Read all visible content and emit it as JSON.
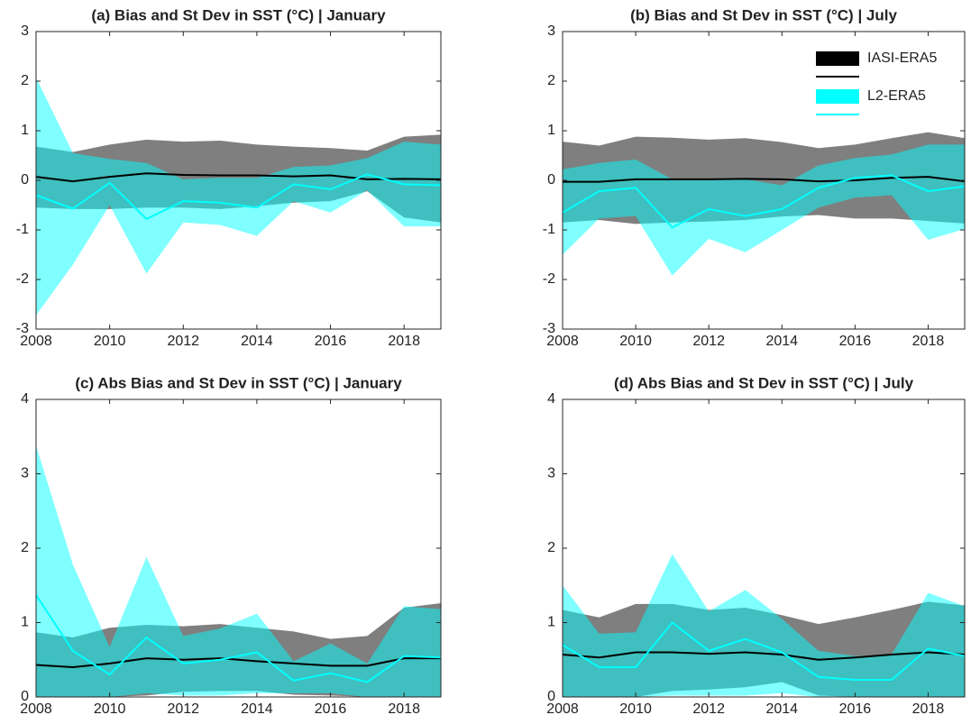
{
  "chart_data": [
    {
      "type": "band-line",
      "title": "(a) Bias and St Dev in SST (°C) | January",
      "x": [
        2008,
        2009,
        2010,
        2011,
        2012,
        2013,
        2014,
        2015,
        2016,
        2017,
        2018,
        2019
      ],
      "xlim": [
        2008,
        2019
      ],
      "xticks": [
        2008,
        2010,
        2012,
        2014,
        2016,
        2018
      ],
      "ylim": [
        -3,
        3
      ],
      "yticks": [
        -3,
        -2,
        -1,
        0,
        1,
        2,
        3
      ],
      "series": [
        {
          "color": "#000000",
          "values": [
            0.07,
            -0.02,
            0.07,
            0.14,
            0.11,
            0.1,
            0.1,
            0.08,
            0.1,
            0.02,
            0.03,
            0.02
          ],
          "upper": [
            0.68,
            0.57,
            0.72,
            0.82,
            0.78,
            0.8,
            0.72,
            0.68,
            0.65,
            0.6,
            0.88,
            0.92
          ],
          "lower": [
            -0.55,
            -0.58,
            -0.58,
            -0.55,
            -0.55,
            -0.58,
            -0.52,
            -0.45,
            -0.42,
            -0.22,
            -0.75,
            -0.85
          ]
        },
        {
          "color": "#00ffff",
          "values": [
            -0.3,
            -0.57,
            -0.05,
            -0.78,
            -0.42,
            -0.45,
            -0.55,
            -0.08,
            -0.18,
            0.12,
            -0.08,
            -0.1
          ],
          "upper": [
            2.07,
            0.55,
            0.43,
            0.35,
            0.02,
            0.05,
            0.05,
            0.27,
            0.3,
            0.45,
            0.78,
            0.72
          ],
          "lower": [
            -2.72,
            -1.7,
            -0.5,
            -1.88,
            -0.85,
            -0.9,
            -1.12,
            -0.42,
            -0.65,
            -0.2,
            -0.93,
            -0.93
          ]
        }
      ]
    },
    {
      "type": "band-line",
      "title": "(b) Bias and St Dev in SST (°C) | July",
      "x": [
        2008,
        2009,
        2010,
        2011,
        2012,
        2013,
        2014,
        2015,
        2016,
        2017,
        2018,
        2019
      ],
      "xlim": [
        2008,
        2019
      ],
      "xticks": [
        2008,
        2010,
        2012,
        2014,
        2016,
        2018
      ],
      "ylim": [
        -3,
        3
      ],
      "yticks": [
        -3,
        -2,
        -1,
        0,
        1,
        2,
        3
      ],
      "legend": "northeast",
      "series": [
        {
          "name": "IASI-ERA5",
          "color": "#000000",
          "values": [
            -0.03,
            -0.03,
            0.02,
            0.02,
            0.02,
            0.03,
            0.02,
            -0.02,
            0.0,
            0.05,
            0.07,
            -0.02
          ],
          "upper": [
            0.78,
            0.7,
            0.88,
            0.86,
            0.82,
            0.85,
            0.77,
            0.65,
            0.72,
            0.85,
            0.97,
            0.85
          ],
          "lower": [
            -0.85,
            -0.8,
            -0.88,
            -0.85,
            -0.83,
            -0.8,
            -0.73,
            -0.7,
            -0.77,
            -0.77,
            -0.82,
            -0.87
          ]
        },
        {
          "name": "L2-ERA5",
          "color": "#00ffff",
          "values": [
            -0.65,
            -0.22,
            -0.15,
            -0.95,
            -0.58,
            -0.72,
            -0.58,
            -0.15,
            0.05,
            0.1,
            -0.22,
            -0.12
          ],
          "upper": [
            0.22,
            0.35,
            0.42,
            0.02,
            0.02,
            0.02,
            -0.1,
            0.3,
            0.45,
            0.52,
            0.72,
            0.72
          ],
          "lower": [
            -1.5,
            -0.77,
            -0.72,
            -1.92,
            -1.18,
            -1.45,
            -1.0,
            -0.55,
            -0.35,
            -0.3,
            -1.2,
            -0.98
          ]
        }
      ]
    },
    {
      "type": "band-line",
      "title": "(c) Abs Bias and St Dev in SST (°C) | January",
      "x": [
        2008,
        2009,
        2010,
        2011,
        2012,
        2013,
        2014,
        2015,
        2016,
        2017,
        2018,
        2019
      ],
      "xlim": [
        2008,
        2019
      ],
      "xticks": [
        2008,
        2010,
        2012,
        2014,
        2016,
        2018
      ],
      "ylim": [
        0,
        4
      ],
      "yticks": [
        0,
        1,
        2,
        3,
        4
      ],
      "series": [
        {
          "color": "#000000",
          "values": [
            0.43,
            0.4,
            0.45,
            0.52,
            0.5,
            0.52,
            0.48,
            0.45,
            0.42,
            0.42,
            0.52,
            0.52
          ],
          "upper": [
            0.87,
            0.8,
            0.93,
            0.97,
            0.95,
            0.98,
            0.93,
            0.88,
            0.78,
            0.82,
            1.2,
            1.26
          ],
          "lower": [
            0,
            0,
            0,
            0.02,
            0.07,
            0.08,
            0.08,
            0.03,
            0.02,
            0,
            0,
            0
          ]
        },
        {
          "color": "#00ffff",
          "values": [
            1.37,
            0.62,
            0.3,
            0.8,
            0.45,
            0.5,
            0.6,
            0.22,
            0.32,
            0.2,
            0.55,
            0.53
          ],
          "upper": [
            3.38,
            1.78,
            0.67,
            1.88,
            0.82,
            0.92,
            1.12,
            0.48,
            0.72,
            0.45,
            1.22,
            1.18
          ],
          "lower": [
            0,
            0,
            0,
            0.05,
            0.02,
            0.02,
            0.05,
            0.05,
            0.05,
            0,
            0,
            0
          ]
        }
      ]
    },
    {
      "type": "band-line",
      "title": "(d) Abs Bias and St Dev in SST (°C) | July",
      "x": [
        2008,
        2009,
        2010,
        2011,
        2012,
        2013,
        2014,
        2015,
        2016,
        2017,
        2018,
        2019
      ],
      "xlim": [
        2008,
        2019
      ],
      "xticks": [
        2008,
        2010,
        2012,
        2014,
        2016,
        2018
      ],
      "ylim": [
        0,
        4
      ],
      "yticks": [
        0,
        1,
        2,
        3,
        4
      ],
      "series": [
        {
          "color": "#000000",
          "values": [
            0.57,
            0.53,
            0.6,
            0.6,
            0.58,
            0.6,
            0.57,
            0.5,
            0.53,
            0.57,
            0.6,
            0.57
          ],
          "upper": [
            1.17,
            1.07,
            1.25,
            1.25,
            1.17,
            1.2,
            1.1,
            0.98,
            1.07,
            1.17,
            1.28,
            1.23
          ],
          "lower": [
            0,
            0,
            0,
            0.08,
            0.1,
            0.13,
            0.2,
            0.02,
            0,
            0,
            0,
            0
          ]
        },
        {
          "color": "#00ffff",
          "values": [
            0.7,
            0.4,
            0.4,
            1.0,
            0.62,
            0.78,
            0.6,
            0.27,
            0.23,
            0.23,
            0.65,
            0.55
          ],
          "upper": [
            1.5,
            0.85,
            0.87,
            1.92,
            1.15,
            1.44,
            1.05,
            0.62,
            0.55,
            0.57,
            1.4,
            1.22
          ],
          "lower": [
            0,
            0,
            0,
            0.02,
            0.02,
            0.02,
            0.05,
            0,
            0,
            0,
            0,
            0
          ]
        }
      ]
    }
  ]
}
